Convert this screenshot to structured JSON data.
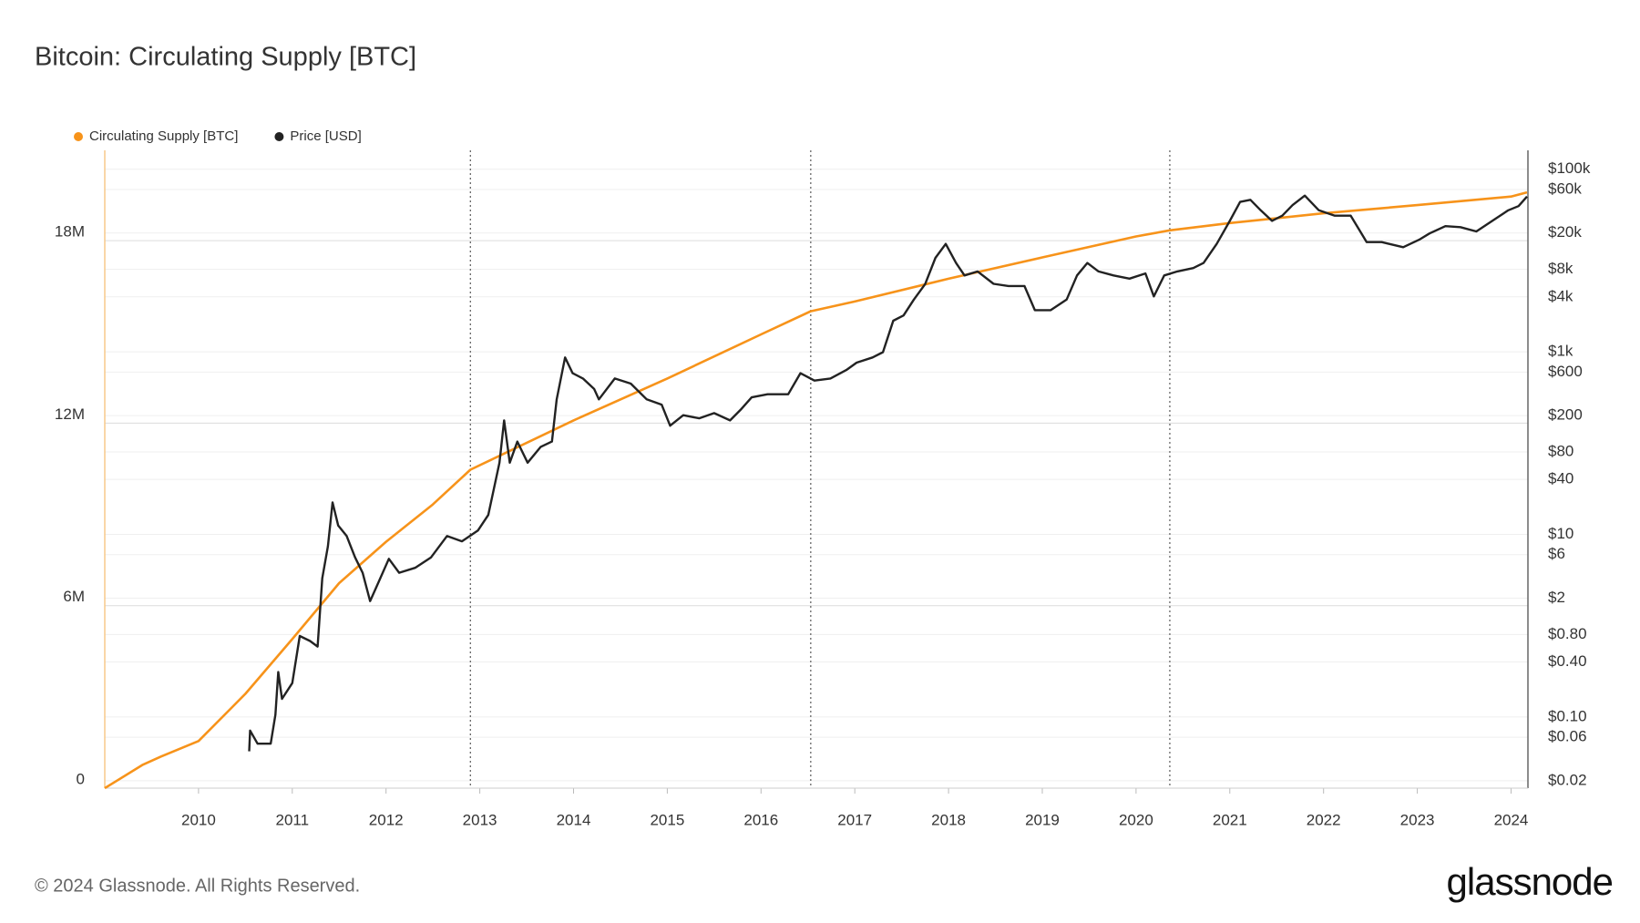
{
  "chart_data": {
    "type": "line",
    "title": "Bitcoin: Circulating Supply [BTC]",
    "footer": "© 2024 Glassnode. All Rights Reserved.",
    "logo": "glassnode",
    "grid": true,
    "y2log": true,
    "xlim": [
      2009.0,
      2024.18
    ],
    "xticks": [
      2010,
      2011,
      2012,
      2013,
      2014,
      2015,
      2016,
      2017,
      2018,
      2019,
      2020,
      2021,
      2022,
      2023,
      2024
    ],
    "ylim": [
      0,
      20970000
    ],
    "yticks": [
      0,
      {
        "value": 6000000,
        "label": "6M"
      },
      {
        "value": 12000000,
        "label": "12M"
      },
      {
        "value": 18000000,
        "label": "18M"
      }
    ],
    "y2lim": [
      0.0166,
      161000
    ],
    "y2ticks": [
      {
        "value": 0.02,
        "label": "$0.02"
      },
      {
        "value": 0.06,
        "label": "$0.06"
      },
      {
        "value": 0.1,
        "label": "$0.10"
      },
      {
        "value": 0.4,
        "label": "$0.40"
      },
      {
        "value": 0.8,
        "label": "$0.80"
      },
      {
        "value": 2,
        "label": "$2"
      },
      {
        "value": 6,
        "label": "$6"
      },
      {
        "value": 10,
        "label": "$10"
      },
      {
        "value": 40,
        "label": "$40"
      },
      {
        "value": 80,
        "label": "$80"
      },
      {
        "value": 200,
        "label": "$200"
      },
      {
        "value": 600,
        "label": "$600"
      },
      {
        "value": 1000,
        "label": "$1k"
      },
      {
        "value": 4000,
        "label": "$4k"
      },
      {
        "value": 8000,
        "label": "$8k"
      },
      {
        "value": 20000,
        "label": "$20k"
      },
      {
        "value": 60000,
        "label": "$60k"
      },
      {
        "value": 100000,
        "label": "$100k"
      }
    ],
    "vlines": [
      2012.9,
      2016.53,
      2020.36
    ],
    "series": [
      {
        "name": "Circulating Supply [BTC]",
        "color": "#f7931a",
        "axis": "y",
        "x": [
          2009.0,
          2009.4,
          2009.6,
          2010.0,
          2010.5,
          2011.0,
          2011.5,
          2012.0,
          2012.5,
          2012.9,
          2014.0,
          2015.0,
          2016.0,
          2016.53,
          2017.0,
          2018.0,
          2019.0,
          2020.0,
          2020.36,
          2021.0,
          2022.0,
          2023.0,
          2024.0,
          2024.17
        ],
        "values": [
          0,
          760000,
          1040000,
          1550000,
          3100000,
          4900000,
          6740000,
          8100000,
          9330000,
          10470000,
          12090000,
          13470000,
          14920000,
          15680000,
          16000000,
          16750000,
          17450000,
          18140000,
          18340000,
          18580000,
          18900000,
          19170000,
          19450000,
          19590000
        ]
      },
      {
        "name": "Price [USD]",
        "color": "#222222",
        "axis": "y2",
        "x": [
          2010.54,
          2010.55,
          2010.63,
          2010.77,
          2010.82,
          2010.85,
          2010.89,
          2011.0,
          2011.08,
          2011.19,
          2011.27,
          2011.32,
          2011.38,
          2011.43,
          2011.49,
          2011.58,
          2011.67,
          2011.75,
          2011.83,
          2011.89,
          2012.03,
          2012.14,
          2012.31,
          2012.48,
          2012.65,
          2012.81,
          2012.98,
          2013.09,
          2013.21,
          2013.26,
          2013.32,
          2013.4,
          2013.51,
          2013.65,
          2013.77,
          2013.82,
          2013.91,
          2013.99,
          2014.1,
          2014.22,
          2014.27,
          2014.44,
          2014.61,
          2014.78,
          2014.94,
          2015.03,
          2015.17,
          2015.34,
          2015.5,
          2015.67,
          2015.78,
          2015.9,
          2016.07,
          2016.29,
          2016.42,
          2016.57,
          2016.74,
          2016.91,
          2017.02,
          2017.19,
          2017.3,
          2017.41,
          2017.52,
          2017.63,
          2017.75,
          2017.86,
          2017.97,
          2018.08,
          2018.17,
          2018.31,
          2018.48,
          2018.64,
          2018.81,
          2018.92,
          2019.09,
          2019.26,
          2019.37,
          2019.48,
          2019.6,
          2019.76,
          2019.93,
          2020.1,
          2020.19,
          2020.3,
          2020.44,
          2020.61,
          2020.72,
          2020.86,
          2021.0,
          2021.11,
          2021.22,
          2021.33,
          2021.45,
          2021.56,
          2021.67,
          2021.8,
          2021.95,
          2022.12,
          2022.29,
          2022.46,
          2022.62,
          2022.85,
          2023.02,
          2023.13,
          2023.3,
          2023.46,
          2023.63,
          2023.8,
          2023.97,
          2024.08,
          2024.17
        ],
        "values": [
          0.042,
          0.071,
          0.051,
          0.051,
          0.106,
          0.31,
          0.158,
          0.235,
          0.77,
          0.68,
          0.59,
          3.3,
          7.4,
          22.4,
          12.5,
          9.6,
          5.6,
          3.8,
          1.86,
          2.55,
          5.4,
          3.8,
          4.3,
          5.6,
          9.6,
          8.4,
          11,
          16.3,
          61,
          177,
          61,
          104,
          61,
          91,
          104,
          301,
          867,
          583,
          510,
          392,
          301,
          510,
          448,
          301,
          264,
          155,
          202,
          187,
          213,
          177,
          231,
          317,
          343,
          343,
          583,
          484,
          510,
          632,
          761,
          867,
          991,
          2190,
          2500,
          3730,
          5510,
          10700,
          15200,
          9400,
          6860,
          7600,
          5550,
          5260,
          5260,
          2860,
          2860,
          3730,
          6860,
          9400,
          7600,
          6860,
          6330,
          7220,
          4040,
          6860,
          7600,
          8260,
          9400,
          15200,
          27200,
          43800,
          46200,
          35500,
          27200,
          31000,
          40500,
          51400,
          35500,
          31000,
          31000,
          15900,
          15900,
          14000,
          16900,
          19800,
          23800,
          23200,
          20800,
          27200,
          35500,
          39400,
          50200
        ]
      }
    ]
  }
}
